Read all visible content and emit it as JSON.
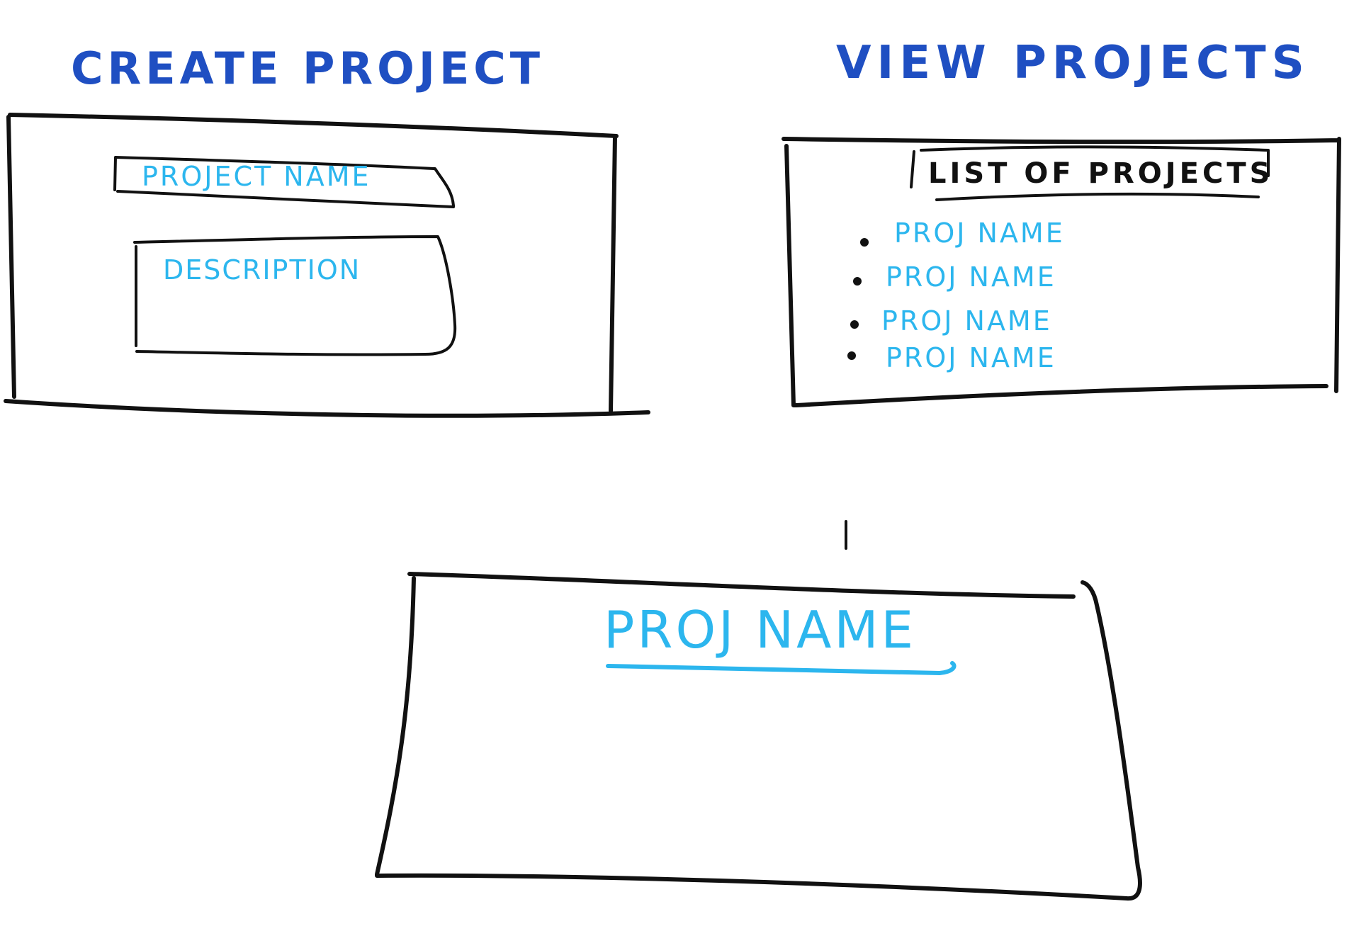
{
  "create_project": {
    "title": "CREATE PROJECT",
    "name_field_label": "PROJECT NAME",
    "description_field_label": "DESCRIPTION"
  },
  "view_projects": {
    "title": "VIEW PROJECTS",
    "list_header": "LIST OF PROJECTS",
    "items": [
      "PROJ NAME",
      "PROJ NAME",
      "PROJ NAME",
      "PROJ NAME"
    ]
  },
  "project_detail": {
    "title": "PROJ NAME"
  },
  "colors": {
    "heading_ink": "#1f4fc2",
    "field_ink": "#2cb6ee",
    "frame_ink": "#111111",
    "background": "#ffffff"
  }
}
